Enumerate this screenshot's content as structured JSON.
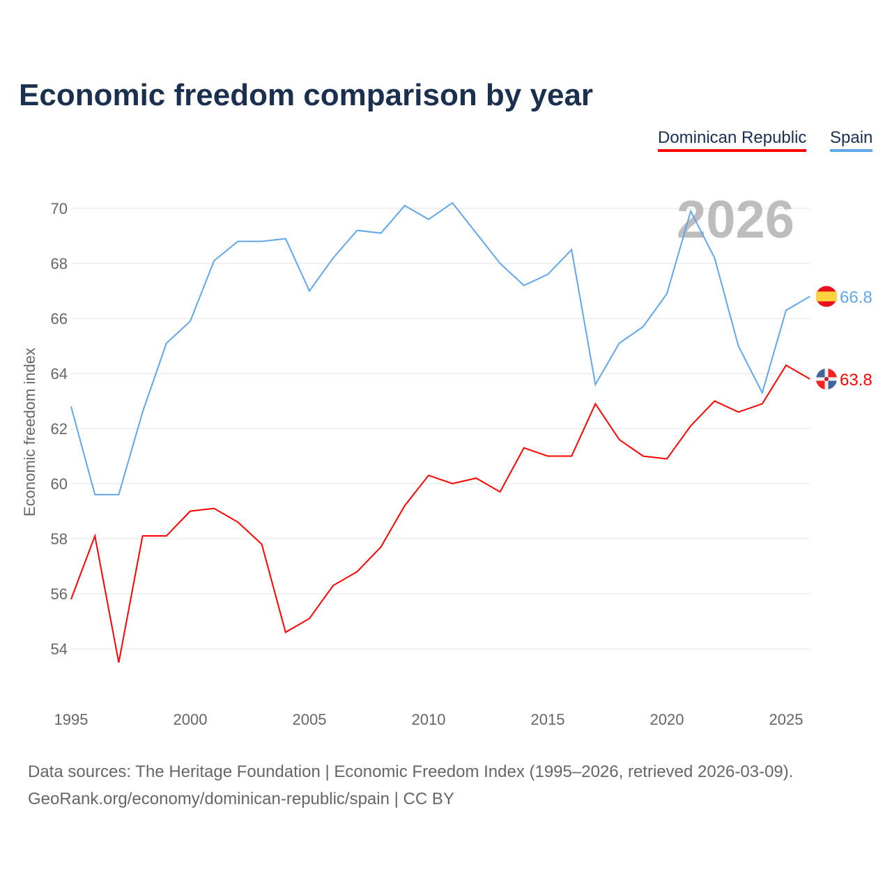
{
  "title": "Economic freedom comparison by year",
  "footer": {
    "line1": "Data sources: The Heritage Foundation | Economic Freedom Index (1995–2026, retrieved 2026-03-09).",
    "line2": "GeoRank.org/economy/dominican-republic/spain | CC BY"
  },
  "chart_data": {
    "type": "line",
    "title": "Economic freedom comparison by year",
    "xlabel": "",
    "ylabel": "Economic freedom index",
    "year_label": "2026",
    "x": [
      1995,
      1996,
      1997,
      1998,
      1999,
      2000,
      2001,
      2002,
      2003,
      2004,
      2005,
      2006,
      2007,
      2008,
      2009,
      2010,
      2011,
      2012,
      2013,
      2014,
      2015,
      2016,
      2017,
      2018,
      2019,
      2020,
      2021,
      2022,
      2023,
      2024,
      2025,
      2026
    ],
    "xticks": [
      "1995",
      "2000",
      "2005",
      "2010",
      "2015",
      "2020",
      "2025"
    ],
    "yticks": [
      "54",
      "56",
      "58",
      "60",
      "62",
      "64",
      "66",
      "68",
      "70"
    ],
    "xlim": [
      1995,
      2026
    ],
    "ylim": [
      52,
      71.5
    ],
    "legend": "top-right",
    "series": [
      {
        "name": "Dominican Republic",
        "color": "#ff0000",
        "end_label": "63.8",
        "values": [
          55.8,
          58.1,
          53.5,
          58.1,
          58.1,
          59.0,
          59.1,
          58.6,
          57.8,
          54.6,
          55.1,
          56.3,
          56.8,
          57.7,
          59.2,
          60.3,
          60.0,
          60.2,
          59.7,
          61.3,
          61.0,
          61.0,
          62.9,
          61.6,
          61.0,
          60.9,
          62.1,
          63.0,
          62.6,
          62.9,
          64.3,
          63.8
        ]
      },
      {
        "name": "Spain",
        "color": "#62a6e8",
        "end_label": "66.8",
        "values": [
          62.8,
          59.6,
          59.6,
          62.6,
          65.1,
          65.9,
          68.1,
          68.8,
          68.8,
          68.9,
          67.0,
          68.2,
          69.2,
          69.1,
          70.1,
          69.6,
          70.2,
          69.1,
          68.0,
          67.2,
          67.6,
          68.5,
          63.6,
          65.1,
          65.7,
          66.9,
          69.9,
          68.2,
          65.0,
          63.3,
          66.3,
          66.8
        ]
      }
    ]
  }
}
